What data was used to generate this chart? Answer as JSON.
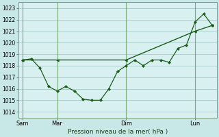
{
  "background_color": "#c8e8e8",
  "plot_bg_color": "#d8f0f0",
  "grid_color": "#a8c8c8",
  "line_color": "#1a5c1a",
  "marker_color": "#1a5c1a",
  "xlabel": "Pression niveau de la mer( hPa )",
  "ylim": [
    1013.5,
    1023.5
  ],
  "yticks": [
    1014,
    1015,
    1016,
    1017,
    1018,
    1019,
    1020,
    1021,
    1022,
    1023
  ],
  "xtick_labels": [
    "Sam",
    "Mar",
    "Dim",
    "Lun"
  ],
  "xtick_positions": [
    0,
    24,
    72,
    120
  ],
  "vline_positions": [
    0,
    24,
    72,
    120
  ],
  "series1_x": [
    0,
    6,
    12,
    18,
    24,
    30,
    36,
    42,
    48,
    54,
    60,
    66,
    72,
    78,
    84,
    90,
    96,
    102,
    108,
    114,
    120,
    126,
    132
  ],
  "series1_y": [
    1018.5,
    1018.6,
    1017.8,
    1016.2,
    1015.8,
    1016.2,
    1015.8,
    1015.1,
    1015.0,
    1015.0,
    1016.0,
    1017.5,
    1018.0,
    1018.5,
    1018.0,
    1018.5,
    1018.5,
    1018.3,
    1019.5,
    1019.8,
    1021.8,
    1022.5,
    1021.5
  ],
  "series2_x": [
    0,
    24,
    72,
    120,
    132
  ],
  "series2_y": [
    1018.5,
    1018.5,
    1018.5,
    1021.0,
    1021.5
  ],
  "xlim": [
    -3,
    135
  ]
}
